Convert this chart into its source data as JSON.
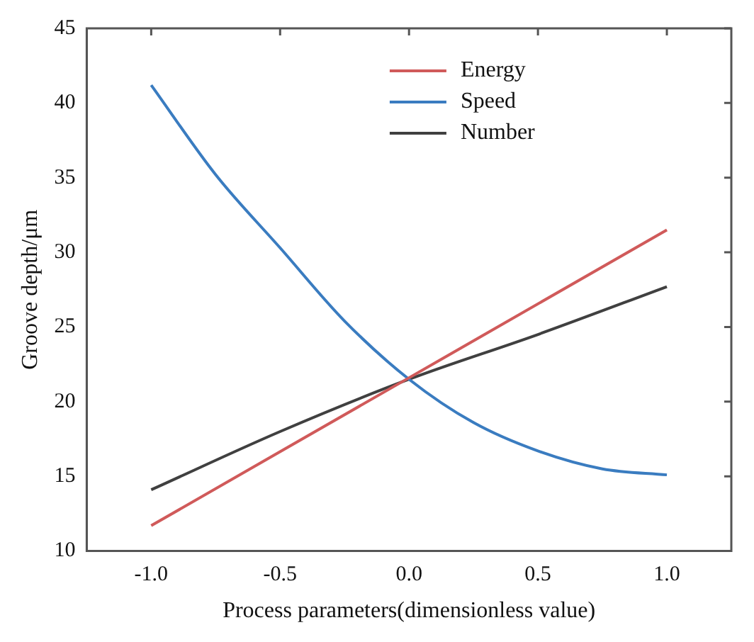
{
  "chart_data": {
    "type": "line",
    "xlabel": "Process parameters(dimensionless value)",
    "ylabel": "Groove depth/μm",
    "xlim": [
      -1.25,
      1.25
    ],
    "xticks": [
      {
        "value": -1,
        "label": "-1.0"
      },
      {
        "value": -0.5,
        "label": "-0.5"
      },
      {
        "value": 0,
        "label": "0.0"
      },
      {
        "value": 0.5,
        "label": "0.5"
      },
      {
        "value": 1,
        "label": "1.0"
      }
    ],
    "ylim": [
      10,
      45
    ],
    "yticks": [
      10,
      15,
      20,
      25,
      30,
      35,
      40,
      45
    ],
    "grid": false,
    "legend": "top right",
    "marker": "none",
    "line_style": "solid",
    "series": [
      {
        "name": "Energy",
        "color": "#d05a5a",
        "x": [
          -1,
          0,
          1
        ],
        "values": [
          11.7,
          21.6,
          31.5
        ]
      },
      {
        "name": "Speed",
        "color": "#3a7cc0",
        "x": [
          -1,
          -0.75,
          -0.5,
          -0.25,
          0,
          0.25,
          0.5,
          0.75,
          1
        ],
        "values": [
          41.2,
          35.2,
          30.3,
          25.4,
          21.5,
          18.6,
          16.7,
          15.5,
          15.1
        ]
      },
      {
        "name": "Number",
        "color": "#404040",
        "x": [
          -1,
          -0.5,
          0,
          0.5,
          1
        ],
        "values": [
          14.1,
          18.0,
          21.5,
          24.5,
          27.7
        ]
      }
    ]
  }
}
